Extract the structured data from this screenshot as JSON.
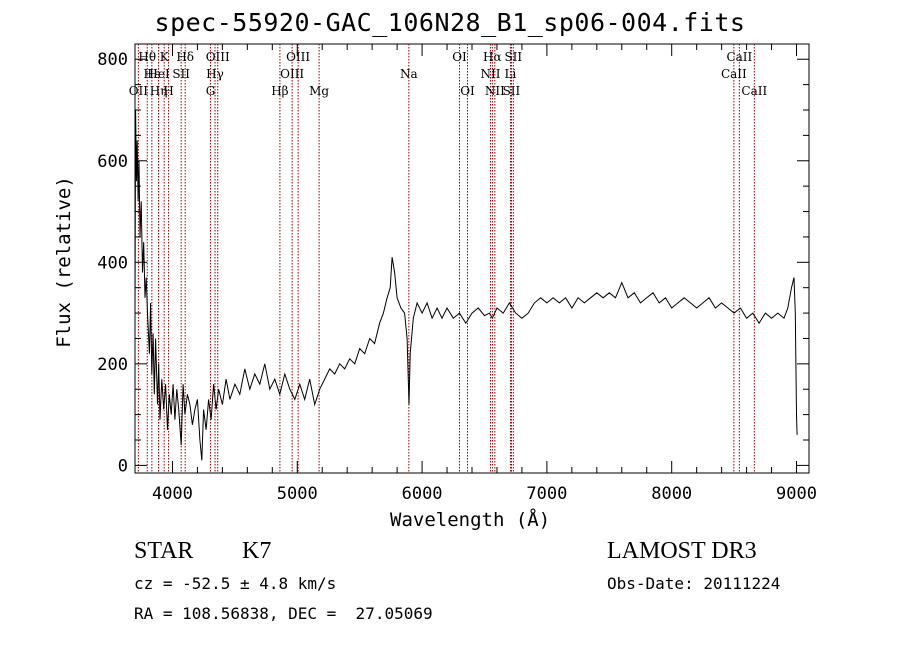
{
  "title": "spec-55920-GAC_106N28_B1_sp06-004.fits",
  "footer": {
    "object_class": "STAR",
    "subclass": "K7",
    "survey": "LAMOST DR3",
    "redshift": "cz = -52.5 ± 4.8 km/s",
    "obs_date": "Obs-Date: 20111224",
    "coords": "RA = 108.56838, DEC =  27.05069"
  },
  "chart_data": {
    "type": "line",
    "xlabel": "Wavelength (Å)",
    "ylabel": "Flux (relative)",
    "xlim": [
      3700,
      9100
    ],
    "ylim": [
      -15,
      830
    ],
    "xticks": [
      4000,
      5000,
      6000,
      7000,
      8000,
      9000
    ],
    "yticks": [
      0,
      200,
      400,
      600,
      800
    ],
    "grid": false,
    "line_color": "#000000",
    "marker_color": "#8b0000",
    "series": [
      {
        "values": [
          [
            3700,
            300
          ],
          [
            3705,
            700
          ],
          [
            3712,
            560
          ],
          [
            3718,
            640
          ],
          [
            3725,
            520
          ],
          [
            3732,
            600
          ],
          [
            3740,
            450
          ],
          [
            3750,
            520
          ],
          [
            3760,
            380
          ],
          [
            3770,
            440
          ],
          [
            3780,
            330
          ],
          [
            3790,
            370
          ],
          [
            3800,
            300
          ],
          [
            3815,
            220
          ],
          [
            3825,
            320
          ],
          [
            3835,
            180
          ],
          [
            3845,
            260
          ],
          [
            3855,
            140
          ],
          [
            3865,
            250
          ],
          [
            3880,
            120
          ],
          [
            3890,
            200
          ],
          [
            3900,
            90
          ],
          [
            3915,
            170
          ],
          [
            3930,
            110
          ],
          [
            3945,
            160
          ],
          [
            3960,
            70
          ],
          [
            3975,
            140
          ],
          [
            3990,
            100
          ],
          [
            4005,
            160
          ],
          [
            4020,
            90
          ],
          [
            4035,
            150
          ],
          [
            4050,
            110
          ],
          [
            4070,
            40
          ],
          [
            4085,
            160
          ],
          [
            4100,
            100
          ],
          [
            4120,
            140
          ],
          [
            4140,
            120
          ],
          [
            4160,
            80
          ],
          [
            4180,
            110
          ],
          [
            4200,
            130
          ],
          [
            4220,
            50
          ],
          [
            4235,
            10
          ],
          [
            4250,
            110
          ],
          [
            4270,
            70
          ],
          [
            4290,
            130
          ],
          [
            4310,
            90
          ],
          [
            4330,
            160
          ],
          [
            4350,
            110
          ],
          [
            4370,
            150
          ],
          [
            4400,
            120
          ],
          [
            4430,
            170
          ],
          [
            4460,
            130
          ],
          [
            4500,
            160
          ],
          [
            4540,
            140
          ],
          [
            4580,
            190
          ],
          [
            4620,
            150
          ],
          [
            4660,
            180
          ],
          [
            4700,
            160
          ],
          [
            4740,
            200
          ],
          [
            4780,
            150
          ],
          [
            4820,
            170
          ],
          [
            4860,
            140
          ],
          [
            4900,
            180
          ],
          [
            4940,
            150
          ],
          [
            4980,
            130
          ],
          [
            5020,
            160
          ],
          [
            5060,
            130
          ],
          [
            5100,
            170
          ],
          [
            5140,
            120
          ],
          [
            5180,
            150
          ],
          [
            5220,
            170
          ],
          [
            5260,
            190
          ],
          [
            5300,
            180
          ],
          [
            5340,
            200
          ],
          [
            5380,
            190
          ],
          [
            5420,
            210
          ],
          [
            5460,
            200
          ],
          [
            5500,
            230
          ],
          [
            5540,
            220
          ],
          [
            5580,
            250
          ],
          [
            5620,
            240
          ],
          [
            5660,
            280
          ],
          [
            5690,
            300
          ],
          [
            5720,
            330
          ],
          [
            5745,
            350
          ],
          [
            5760,
            410
          ],
          [
            5780,
            380
          ],
          [
            5800,
            330
          ],
          [
            5830,
            310
          ],
          [
            5860,
            300
          ],
          [
            5880,
            250
          ],
          [
            5895,
            120
          ],
          [
            5905,
            220
          ],
          [
            5930,
            290
          ],
          [
            5960,
            320
          ],
          [
            6000,
            300
          ],
          [
            6040,
            320
          ],
          [
            6080,
            290
          ],
          [
            6120,
            310
          ],
          [
            6160,
            290
          ],
          [
            6200,
            310
          ],
          [
            6250,
            290
          ],
          [
            6300,
            300
          ],
          [
            6350,
            280
          ],
          [
            6400,
            300
          ],
          [
            6450,
            310
          ],
          [
            6500,
            295
          ],
          [
            6540,
            300
          ],
          [
            6563,
            290
          ],
          [
            6600,
            310
          ],
          [
            6650,
            300
          ],
          [
            6700,
            320
          ],
          [
            6750,
            300
          ],
          [
            6800,
            290
          ],
          [
            6850,
            300
          ],
          [
            6900,
            320
          ],
          [
            6950,
            330
          ],
          [
            7000,
            320
          ],
          [
            7050,
            330
          ],
          [
            7100,
            320
          ],
          [
            7150,
            330
          ],
          [
            7200,
            310
          ],
          [
            7250,
            330
          ],
          [
            7300,
            320
          ],
          [
            7350,
            330
          ],
          [
            7400,
            340
          ],
          [
            7450,
            330
          ],
          [
            7500,
            340
          ],
          [
            7550,
            330
          ],
          [
            7600,
            360
          ],
          [
            7650,
            330
          ],
          [
            7700,
            340
          ],
          [
            7750,
            320
          ],
          [
            7800,
            330
          ],
          [
            7850,
            340
          ],
          [
            7900,
            320
          ],
          [
            7950,
            330
          ],
          [
            8000,
            310
          ],
          [
            8050,
            320
          ],
          [
            8100,
            330
          ],
          [
            8150,
            320
          ],
          [
            8200,
            310
          ],
          [
            8250,
            320
          ],
          [
            8300,
            330
          ],
          [
            8350,
            310
          ],
          [
            8400,
            320
          ],
          [
            8450,
            310
          ],
          [
            8500,
            300
          ],
          [
            8550,
            310
          ],
          [
            8600,
            290
          ],
          [
            8650,
            300
          ],
          [
            8700,
            280
          ],
          [
            8750,
            300
          ],
          [
            8800,
            290
          ],
          [
            8850,
            300
          ],
          [
            8900,
            290
          ],
          [
            8930,
            310
          ],
          [
            8960,
            350
          ],
          [
            8980,
            370
          ],
          [
            8990,
            300
          ],
          [
            9000,
            100
          ],
          [
            9005,
            60
          ]
        ]
      }
    ],
    "lines": [
      {
        "label": "OII",
        "x": 3727,
        "row": 3
      },
      {
        "label": "Hθ",
        "x": 3798,
        "row": 1
      },
      {
        "label": "Hε",
        "x": 3835,
        "row": 2
      },
      {
        "label": "Hη",
        "x": 3889,
        "row": 3
      },
      {
        "label": "HeI",
        "x": 3889,
        "row": 2
      },
      {
        "label": "K",
        "x": 3934,
        "row": 1
      },
      {
        "label": "H",
        "x": 3969,
        "row": 3
      },
      {
        "label": "SII",
        "x": 4070,
        "row": 2
      },
      {
        "label": "Hδ",
        "x": 4102,
        "row": 1
      },
      {
        "label": "G",
        "x": 4305,
        "row": 3
      },
      {
        "label": "Hγ",
        "x": 4341,
        "row": 2
      },
      {
        "label": "OIII",
        "x": 4363,
        "row": 1
      },
      {
        "label": "Hβ",
        "x": 4861,
        "row": 3
      },
      {
        "label": "OIII",
        "x": 4959,
        "row": 2
      },
      {
        "label": "OIII",
        "x": 5007,
        "row": 1
      },
      {
        "label": "Mg",
        "x": 5175,
        "row": 3
      },
      {
        "label": "Na",
        "x": 5894,
        "row": 2
      },
      {
        "label": "OI",
        "x": 6300,
        "row": 1
      },
      {
        "label": "OI",
        "x": 6364,
        "row": 3
      },
      {
        "label": "NII",
        "x": 6548,
        "row": 2
      },
      {
        "label": "Hα",
        "x": 6563,
        "row": 1
      },
      {
        "label": "NII",
        "x": 6583,
        "row": 3
      },
      {
        "label": "Li",
        "x": 6708,
        "row": 2
      },
      {
        "label": "SII",
        "x": 6716,
        "row": 3
      },
      {
        "label": "SII",
        "x": 6731,
        "row": 1
      },
      {
        "label": "CaII",
        "x": 8498,
        "row": 2
      },
      {
        "label": "CaII",
        "x": 8542,
        "row": 1
      },
      {
        "label": "CaII",
        "x": 8662,
        "row": 3
      }
    ]
  }
}
